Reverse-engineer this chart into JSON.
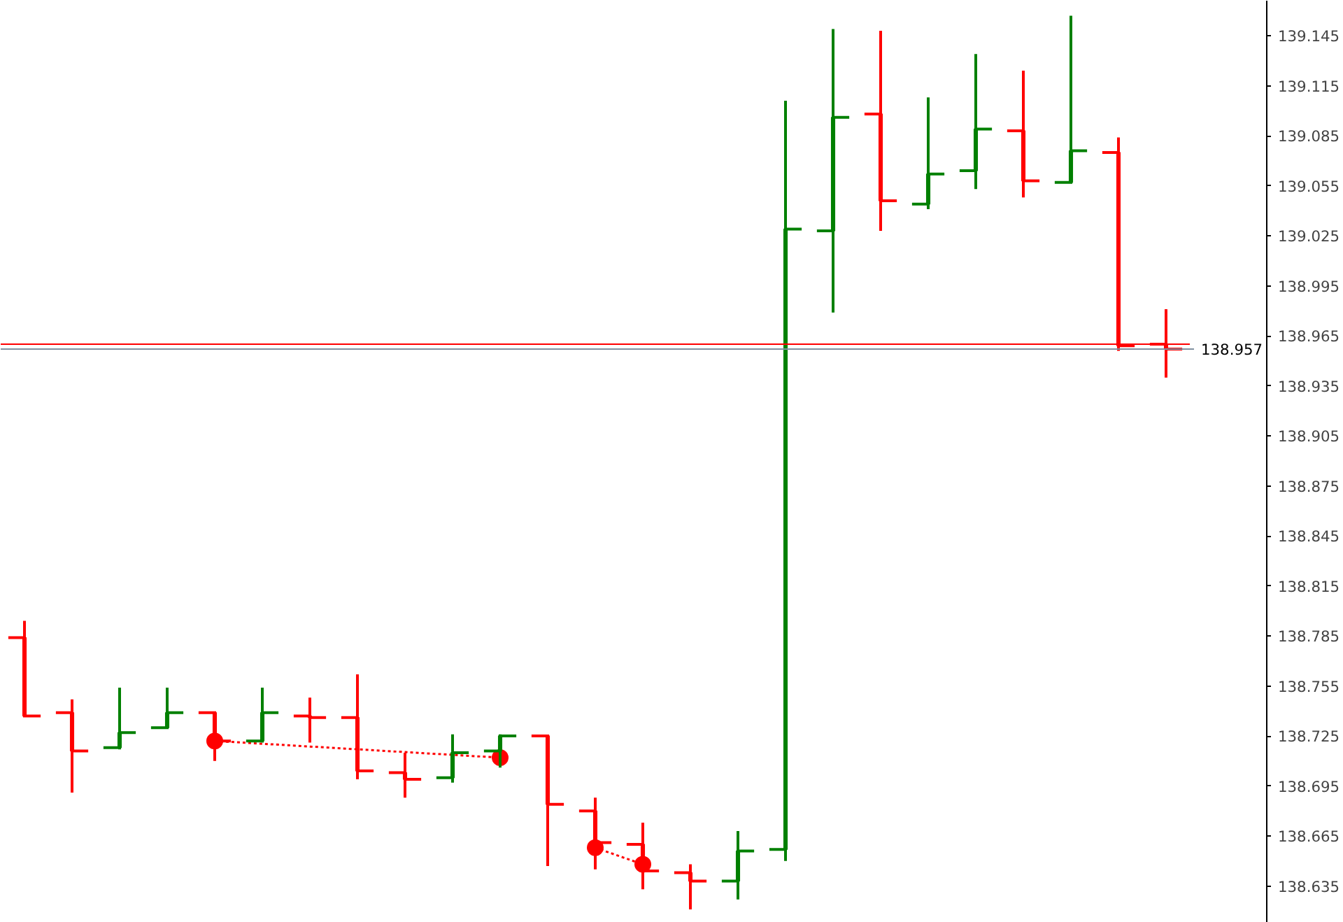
{
  "chart_data": {
    "type": "candlestick",
    "categories": [
      null,
      null,
      null,
      null,
      null,
      null,
      null,
      null,
      null,
      null,
      null,
      null,
      null,
      null,
      null,
      null,
      null,
      null,
      null,
      null,
      null,
      null,
      null,
      null,
      null
    ],
    "ohlc": [
      [
        138.784,
        138.794,
        138.737,
        138.737
      ],
      [
        138.739,
        138.747,
        138.691,
        138.716
      ],
      [
        138.718,
        138.754,
        138.717,
        138.727
      ],
      [
        138.73,
        138.754,
        138.73,
        138.739
      ],
      [
        138.739,
        138.739,
        138.71,
        138.722
      ],
      [
        138.722,
        138.754,
        138.721,
        138.739
      ],
      [
        138.737,
        138.748,
        138.721,
        138.736
      ],
      [
        138.736,
        138.762,
        138.699,
        138.704
      ],
      [
        138.703,
        138.715,
        138.688,
        138.699
      ],
      [
        138.7,
        138.726,
        138.697,
        138.715
      ],
      [
        138.716,
        138.726,
        138.706,
        138.725
      ],
      [
        138.725,
        138.725,
        138.647,
        138.684
      ],
      [
        138.68,
        138.688,
        138.645,
        138.661
      ],
      [
        138.66,
        138.673,
        138.633,
        138.644
      ],
      [
        138.643,
        138.648,
        138.621,
        138.638
      ],
      [
        138.638,
        138.668,
        138.627,
        138.656
      ],
      [
        138.657,
        139.106,
        138.65,
        139.029
      ],
      [
        139.028,
        139.149,
        138.979,
        139.096
      ],
      [
        139.098,
        139.148,
        139.028,
        139.046
      ],
      [
        139.044,
        139.108,
        139.041,
        139.062
      ],
      [
        139.064,
        139.134,
        139.053,
        139.089
      ],
      [
        139.088,
        139.124,
        139.048,
        139.058
      ],
      [
        139.057,
        139.157,
        139.057,
        139.076
      ],
      [
        139.075,
        139.084,
        138.956,
        138.959
      ],
      [
        138.96,
        138.981,
        138.94,
        138.957
      ]
    ],
    "colors": [
      "#ff0000",
      "#ff0000",
      "#008000",
      "#008000",
      "#ff0000",
      "#008000",
      "#ff0000",
      "#ff0000",
      "#ff0000",
      "#008000",
      "#008000",
      "#ff0000",
      "#ff0000",
      "#ff0000",
      "#ff0000",
      "#008000",
      "#008000",
      "#008000",
      "#ff0000",
      "#008000",
      "#008000",
      "#ff0000",
      "#008000",
      "#ff0000",
      "#ff0000"
    ],
    "series": [
      {
        "type": "line",
        "color": "#ff0000",
        "marker": "circle",
        "line_style": "dotted",
        "values": [
          null,
          null,
          null,
          null,
          138.722,
          null,
          null,
          null,
          null,
          null,
          138.712,
          null,
          null,
          null,
          null,
          null,
          null,
          null,
          null,
          null,
          null,
          null,
          null,
          null,
          null
        ]
      },
      {
        "type": "line",
        "color": "#ff0000",
        "marker": "circle",
        "line_style": "dotted",
        "values": [
          null,
          null,
          null,
          null,
          null,
          null,
          null,
          null,
          null,
          null,
          null,
          null,
          138.658,
          138.648,
          null,
          null,
          null,
          null,
          null,
          null,
          null,
          null,
          null,
          null,
          null
        ]
      }
    ],
    "ylim": [
      138.613,
      139.166
    ],
    "yticks": [
      138.635,
      138.665,
      138.695,
      138.725,
      138.755,
      138.785,
      138.815,
      138.845,
      138.875,
      138.905,
      138.935,
      138.965,
      138.995,
      139.025,
      139.055,
      139.085,
      139.115,
      139.145
    ],
    "ref_lines": [
      {
        "axis": "y",
        "value": 138.96,
        "color": "#ff0000"
      },
      {
        "axis": "y",
        "value": 138.957,
        "label": "138.957",
        "color": "#8090a0"
      }
    ],
    "grid": false
  }
}
